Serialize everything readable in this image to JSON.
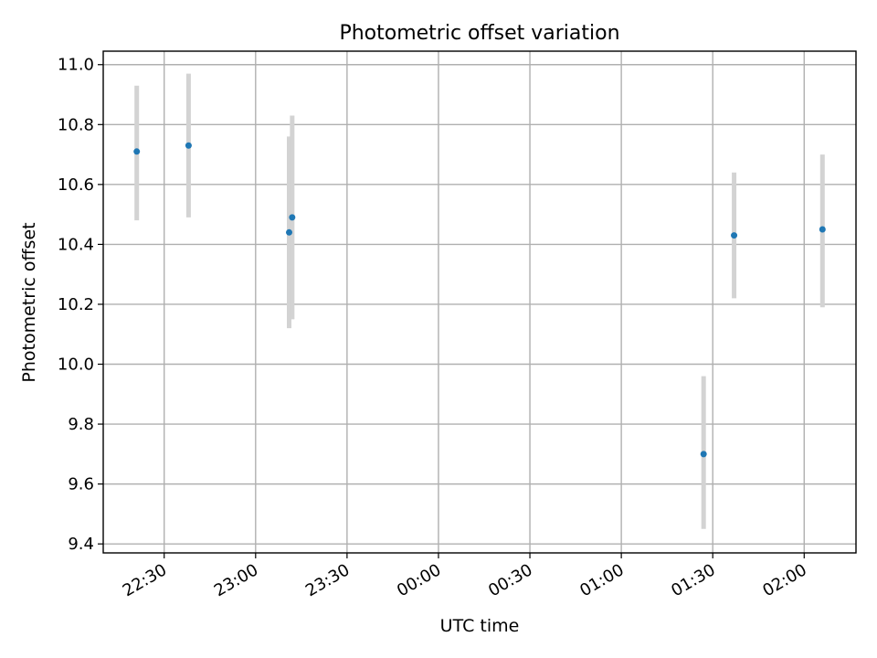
{
  "chart_data": {
    "type": "scatter",
    "title": "Photometric offset variation",
    "xlabel": "UTC time",
    "ylabel": "Photometric offset",
    "x_ticks": [
      "22:30",
      "23:00",
      "23:30",
      "00:00",
      "00:30",
      "01:00",
      "01:30",
      "02:00"
    ],
    "x_range": [
      "22:10",
      "02:17"
    ],
    "ylim": [
      9.37,
      11.045
    ],
    "y_ticks": [
      "9.4",
      "9.6",
      "9.8",
      "10.0",
      "10.2",
      "10.4",
      "10.6",
      "10.8",
      "11.0"
    ],
    "grid": true,
    "points": [
      {
        "x": "22:21",
        "y": 10.71,
        "yerr": [
          10.48,
          10.93
        ]
      },
      {
        "x": "22:38",
        "y": 10.73,
        "yerr": [
          10.49,
          10.97
        ]
      },
      {
        "x": "23:11",
        "y": 10.44,
        "yerr": [
          10.12,
          10.76
        ]
      },
      {
        "x": "23:12",
        "y": 10.49,
        "yerr": [
          10.15,
          10.83
        ]
      },
      {
        "x": "01:27",
        "y": 9.7,
        "yerr": [
          9.45,
          9.96
        ]
      },
      {
        "x": "01:37",
        "y": 10.43,
        "yerr": [
          10.22,
          10.64
        ]
      },
      {
        "x": "02:06",
        "y": 10.45,
        "yerr": [
          10.19,
          10.7
        ]
      }
    ],
    "colors": {
      "points": "#1f77b4",
      "errorbars": "#d3d3d3",
      "grid": "#b0b0b0"
    }
  }
}
